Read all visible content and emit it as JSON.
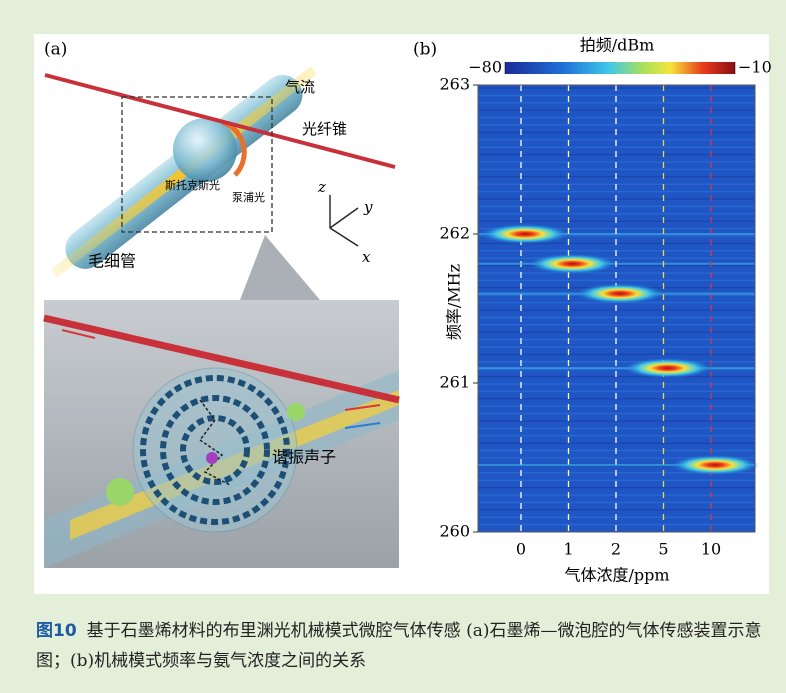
{
  "diagram": {
    "panel_label": "(a)",
    "airflow": "气流",
    "fiber_taper": "光纤锥",
    "stokes": "斯托克斯光",
    "pump": "泵浦光",
    "capillary": "毛细管",
    "axis_z": "z",
    "axis_y": "y",
    "axis_x": "x",
    "phonon": "谐振声子"
  },
  "chart_data": {
    "type": "heatmap",
    "panel_label": "(b)",
    "title": "拍频/dBm",
    "xlabel": "气体浓度/ppm",
    "ylabel": "频率/MHz",
    "categories": [
      "0",
      "1",
      "2",
      "5",
      "10"
    ],
    "values": [
      262.0,
      261.8,
      261.6,
      261.1,
      260.45
    ],
    "ylim": [
      260,
      263
    ],
    "yticks": [
      260,
      261,
      262,
      263
    ],
    "clim": [
      -80,
      -10
    ],
    "cticks": [
      {
        "value": -80,
        "label": "−80"
      },
      {
        "value": -10,
        "label": "−10"
      }
    ],
    "guide_colors": [
      "#ffffff",
      "#ffffff",
      "#ffffff",
      "#e8d84a",
      "#d8383a"
    ]
  },
  "caption": {
    "label": "图10",
    "text": "基于石墨烯材料的布里渊光机械模式微腔气体传感 (a)石墨烯—微泡腔的气体传感装置示意图；(b)机械模式频率与氨气浓度之间的关系"
  }
}
